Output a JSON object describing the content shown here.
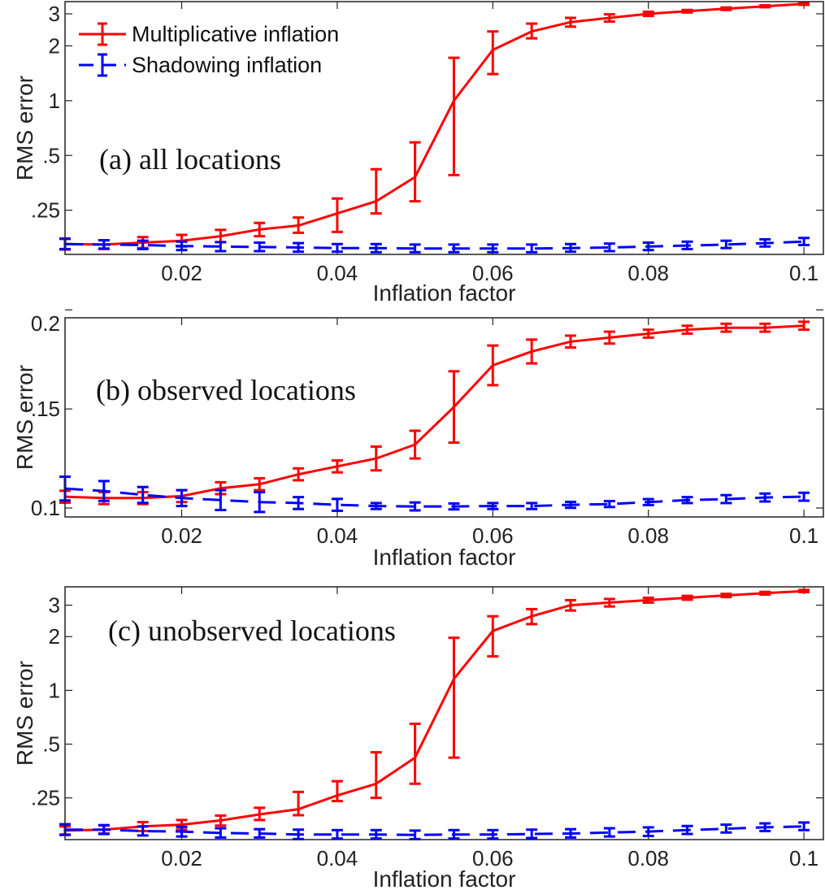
{
  "chart_data": [
    {
      "type": "line",
      "annotation": "(a) all locations",
      "xlabel": "Inflation factor",
      "ylabel": "RMS error",
      "yscale": "log",
      "xlim": [
        0.005,
        0.1025
      ],
      "ylim": [
        0.143,
        3.5
      ],
      "xticks": [
        0.02,
        0.04,
        0.06,
        0.08,
        0.1
      ],
      "xtick_labels": [
        "0.02",
        "0.04",
        "0.06",
        "0.08",
        "0.1"
      ],
      "yticks": [
        0.25,
        0.5,
        1,
        2,
        3
      ],
      "ytick_labels": [
        ".25",
        ".5",
        "1",
        "2",
        "3"
      ],
      "legend": {
        "placement": "top-left",
        "entries": [
          "Multiplicative inflation",
          "Shadowing inflation"
        ]
      },
      "x": [
        0.005,
        0.01,
        0.015,
        0.02,
        0.025,
        0.03,
        0.035,
        0.04,
        0.045,
        0.05,
        0.055,
        0.06,
        0.065,
        0.07,
        0.075,
        0.08,
        0.085,
        0.09,
        0.095,
        0.1
      ],
      "series": [
        {
          "name": "Multiplicative inflation",
          "color": "#ff0000",
          "dash": "solid",
          "values": [
            0.163,
            0.162,
            0.166,
            0.17,
            0.18,
            0.196,
            0.206,
            0.24,
            0.28,
            0.38,
            1.0,
            1.9,
            2.4,
            2.7,
            2.85,
            3.0,
            3.1,
            3.2,
            3.3,
            3.4
          ],
          "lower": [
            0.152,
            0.153,
            0.155,
            0.158,
            0.167,
            0.18,
            0.188,
            0.19,
            0.24,
            0.28,
            0.39,
            1.4,
            2.2,
            2.55,
            2.72,
            2.92,
            3.05,
            3.15,
            3.26,
            3.36
          ],
          "upper": [
            0.175,
            0.171,
            0.178,
            0.183,
            0.195,
            0.213,
            0.228,
            0.29,
            0.42,
            0.59,
            1.72,
            2.4,
            2.65,
            2.85,
            2.98,
            3.08,
            3.15,
            3.25,
            3.34,
            3.44
          ]
        },
        {
          "name": "Shadowing inflation",
          "color": "#0000ff",
          "dash": "dashed",
          "values": [
            0.163,
            0.162,
            0.161,
            0.159,
            0.158,
            0.157,
            0.156,
            0.155,
            0.155,
            0.154,
            0.154,
            0.154,
            0.154,
            0.155,
            0.156,
            0.158,
            0.16,
            0.162,
            0.165,
            0.168
          ],
          "lower": [
            0.153,
            0.154,
            0.153,
            0.151,
            0.149,
            0.149,
            0.148,
            0.148,
            0.147,
            0.147,
            0.147,
            0.147,
            0.147,
            0.148,
            0.149,
            0.151,
            0.153,
            0.155,
            0.158,
            0.161
          ],
          "upper": [
            0.174,
            0.171,
            0.17,
            0.168,
            0.167,
            0.166,
            0.165,
            0.163,
            0.163,
            0.162,
            0.162,
            0.162,
            0.162,
            0.163,
            0.164,
            0.166,
            0.168,
            0.17,
            0.173,
            0.176
          ]
        }
      ]
    },
    {
      "type": "line",
      "annotation": "(b) observed locations",
      "xlabel": "Inflation factor",
      "ylabel": "RMS error",
      "yscale": "linear",
      "xlim": [
        0.005,
        0.1025
      ],
      "ylim": [
        0.0955,
        0.196
      ],
      "xticks": [
        0.02,
        0.04,
        0.06,
        0.08,
        0.1
      ],
      "xtick_labels": [
        "0.02",
        "0.04",
        "0.06",
        "0.08",
        "0.1"
      ],
      "yticks": [
        0.1,
        0.15,
        0.2
      ],
      "ytick_labels": [
        "0.1",
        ".15",
        "0.2"
      ],
      "x": [
        0.005,
        0.01,
        0.015,
        0.02,
        0.025,
        0.03,
        0.035,
        0.04,
        0.045,
        0.05,
        0.055,
        0.06,
        0.065,
        0.07,
        0.075,
        0.08,
        0.085,
        0.09,
        0.095,
        0.1
      ],
      "series": [
        {
          "name": "Multiplicative inflation",
          "color": "#ff0000",
          "dash": "solid",
          "values": [
            0.1057,
            0.105,
            0.105,
            0.106,
            0.11,
            0.112,
            0.117,
            0.121,
            0.125,
            0.132,
            0.151,
            0.172,
            0.179,
            0.184,
            0.186,
            0.188,
            0.19,
            0.191,
            0.191,
            0.192
          ],
          "lower": [
            0.1027,
            0.102,
            0.102,
            0.103,
            0.107,
            0.109,
            0.114,
            0.118,
            0.119,
            0.125,
            0.133,
            0.162,
            0.173,
            0.181,
            0.183,
            0.186,
            0.188,
            0.189,
            0.189,
            0.19
          ],
          "upper": [
            0.1087,
            0.108,
            0.108,
            0.109,
            0.113,
            0.115,
            0.12,
            0.124,
            0.131,
            0.139,
            0.169,
            0.182,
            0.185,
            0.187,
            0.189,
            0.19,
            0.192,
            0.193,
            0.193,
            0.194
          ]
        },
        {
          "name": "Shadowing inflation",
          "color": "#0000ff",
          "dash": "dashed",
          "values": [
            0.1098,
            0.1086,
            0.1066,
            0.105,
            0.104,
            0.103,
            0.1025,
            0.1016,
            0.101,
            0.1008,
            0.1008,
            0.101,
            0.101,
            0.1016,
            0.102,
            0.103,
            0.104,
            0.1045,
            0.1053,
            0.1057
          ],
          "lower": [
            0.1038,
            0.1036,
            0.1026,
            0.101,
            0.099,
            0.098,
            0.0995,
            0.0986,
            0.0995,
            0.0988,
            0.0993,
            0.0995,
            0.0995,
            0.1001,
            0.1005,
            0.1015,
            0.1025,
            0.1025,
            0.1033,
            0.1037
          ],
          "upper": [
            0.1158,
            0.1136,
            0.1106,
            0.109,
            0.109,
            0.108,
            0.1055,
            0.1046,
            0.1025,
            0.1028,
            0.1023,
            0.1025,
            0.1025,
            0.1031,
            0.1035,
            0.1045,
            0.1055,
            0.1065,
            0.1073,
            0.1077
          ]
        }
      ]
    },
    {
      "type": "line",
      "annotation": "(c) unobserved locations",
      "xlabel": "Inflation factor",
      "ylabel": "RMS error",
      "yscale": "log",
      "xlim": [
        0.005,
        0.1025
      ],
      "ylim": [
        0.146,
        3.8
      ],
      "xticks": [
        0.02,
        0.04,
        0.06,
        0.08,
        0.1
      ],
      "xtick_labels": [
        "0.02",
        "0.04",
        "0.06",
        "0.08",
        "0.1"
      ],
      "yticks": [
        0.25,
        0.5,
        1,
        2,
        3
      ],
      "ytick_labels": [
        ".25",
        ".5",
        "1",
        "2",
        "3"
      ],
      "x": [
        0.005,
        0.01,
        0.015,
        0.02,
        0.025,
        0.03,
        0.035,
        0.04,
        0.045,
        0.05,
        0.055,
        0.06,
        0.065,
        0.07,
        0.075,
        0.08,
        0.085,
        0.09,
        0.095,
        0.1
      ],
      "series": [
        {
          "name": "Multiplicative inflation",
          "color": "#ff0000",
          "dash": "solid",
          "values": [
            0.164,
            0.166,
            0.173,
            0.177,
            0.187,
            0.202,
            0.216,
            0.258,
            0.3,
            0.42,
            1.16,
            2.15,
            2.6,
            3.0,
            3.1,
            3.2,
            3.3,
            3.4,
            3.5,
            3.6
          ],
          "lower": [
            0.156,
            0.158,
            0.163,
            0.166,
            0.175,
            0.188,
            0.2,
            0.24,
            0.25,
            0.3,
            0.42,
            1.55,
            2.35,
            2.8,
            2.95,
            3.1,
            3.22,
            3.33,
            3.44,
            3.55
          ],
          "upper": [
            0.173,
            0.175,
            0.183,
            0.188,
            0.199,
            0.22,
            0.27,
            0.31,
            0.45,
            0.65,
            1.97,
            2.6,
            2.85,
            3.2,
            3.25,
            3.3,
            3.38,
            3.47,
            3.56,
            3.65
          ]
        },
        {
          "name": "Shadowing inflation",
          "color": "#0000ff",
          "dash": "dashed",
          "values": [
            0.166,
            0.166,
            0.163,
            0.162,
            0.159,
            0.158,
            0.156,
            0.156,
            0.156,
            0.155,
            0.156,
            0.156,
            0.157,
            0.158,
            0.16,
            0.162,
            0.165,
            0.168,
            0.171,
            0.173
          ],
          "lower": [
            0.155,
            0.157,
            0.154,
            0.152,
            0.15,
            0.15,
            0.147,
            0.148,
            0.148,
            0.147,
            0.148,
            0.148,
            0.149,
            0.15,
            0.152,
            0.153,
            0.157,
            0.16,
            0.163,
            0.165
          ],
          "upper": [
            0.178,
            0.176,
            0.173,
            0.172,
            0.169,
            0.167,
            0.166,
            0.165,
            0.165,
            0.164,
            0.165,
            0.165,
            0.166,
            0.167,
            0.169,
            0.171,
            0.174,
            0.177,
            0.18,
            0.182
          ]
        }
      ]
    }
  ]
}
